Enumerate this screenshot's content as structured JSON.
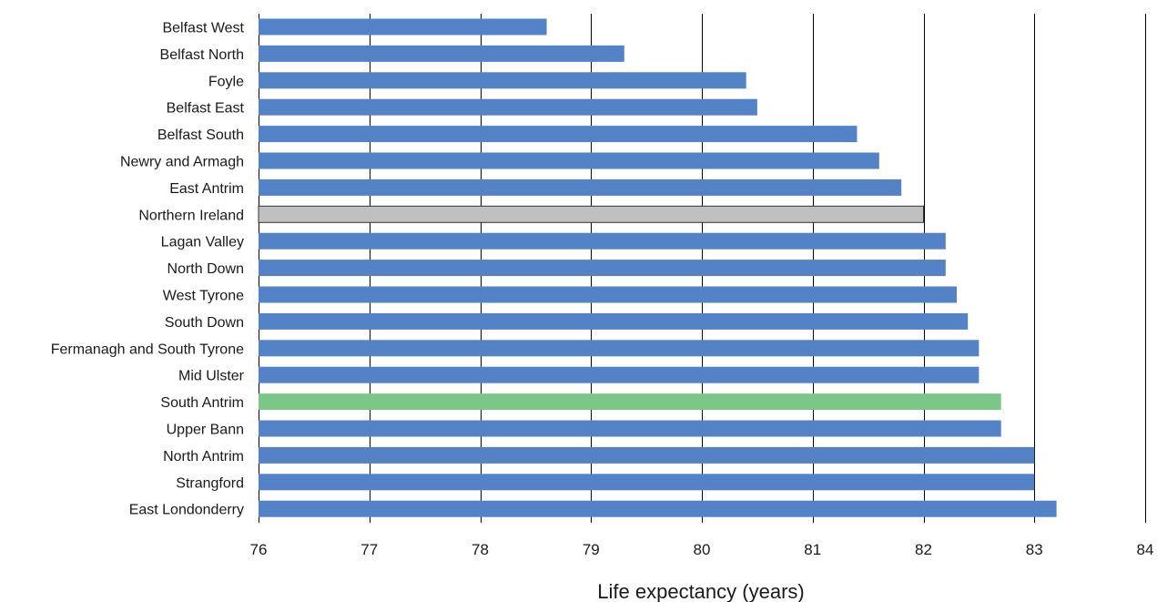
{
  "chart_data": {
    "type": "bar",
    "orientation": "horizontal",
    "title": "",
    "xlabel": "Life expectancy (years)",
    "ylabel": "",
    "xlim": [
      76,
      84
    ],
    "xticks": [
      76,
      77,
      78,
      79,
      80,
      81,
      82,
      83,
      84
    ],
    "grid": true,
    "legend": "none",
    "categories": [
      "Belfast West",
      "Belfast North",
      "Foyle",
      "Belfast East",
      "Belfast South",
      "Newry and Armagh",
      "East Antrim",
      "Northern Ireland",
      "Lagan Valley",
      "North Down",
      "West Tyrone",
      "South Down",
      "Fermanagh and South Tyrone",
      "Mid Ulster",
      "South Antrim",
      "Upper Bann",
      "North Antrim",
      "Strangford",
      "East Londonderry"
    ],
    "values": [
      78.6,
      79.3,
      80.4,
      80.5,
      81.4,
      81.6,
      81.8,
      82.0,
      82.2,
      82.2,
      82.3,
      82.4,
      82.5,
      82.5,
      82.7,
      82.7,
      83.0,
      83.0,
      83.2
    ],
    "colors": {
      "default": "#5383c6",
      "highlight_reference": "#bfc0c1",
      "highlight_selected": "#7cc68a",
      "reference_outline": "#333333"
    },
    "highlight": {
      "Northern Ireland": "highlight_reference",
      "South Antrim": "highlight_selected"
    }
  }
}
